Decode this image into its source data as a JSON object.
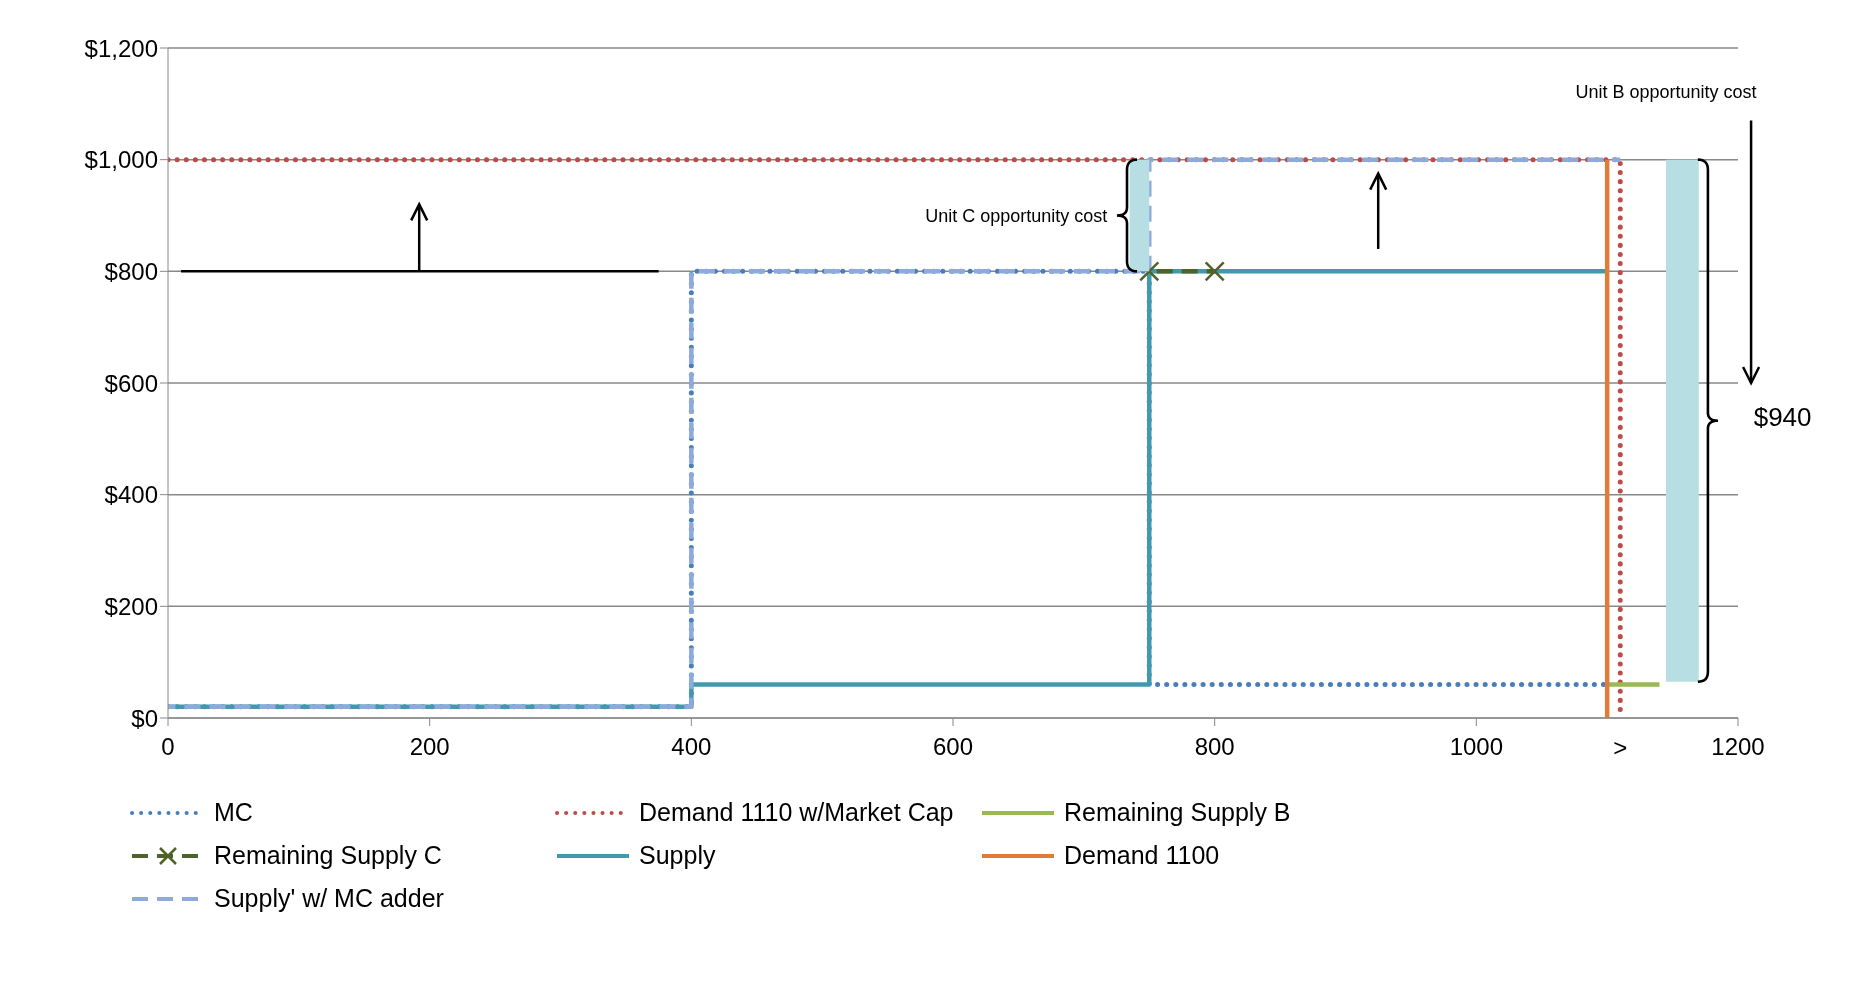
{
  "chart_data": {
    "type": "line",
    "xlim": [
      0,
      1200
    ],
    "ylim": [
      0,
      1200
    ],
    "xticks": [
      0,
      200,
      400,
      600,
      800,
      1000,
      1200
    ],
    "yticks": [
      {
        "value": 0,
        "label": "$0"
      },
      {
        "value": 200,
        "label": "$200"
      },
      {
        "value": 400,
        "label": "$400"
      },
      {
        "value": 600,
        "label": "$600"
      },
      {
        "value": 800,
        "label": "$800"
      },
      {
        "value": 1000,
        "label": "$1,000"
      },
      {
        "value": 1200,
        "label": "$1,200"
      }
    ],
    "grid": "y",
    "legend": "bottom",
    "marker": "none",
    "annotations": [
      "Unit C opportunity cost",
      "Unit B opportunity cost",
      "$940",
      ">"
    ],
    "series": [
      {
        "name": "MC",
        "color": "#4a7ebb",
        "line_style": "dotted",
        "x": [
          0,
          400,
          400,
          750,
          750,
          1100
        ],
        "values": [
          20,
          20,
          800,
          800,
          60,
          60
        ]
      },
      {
        "name": "Demand 1110 w/Market Cap",
        "color": "#be4b48",
        "line_style": "dotted",
        "x": [
          0,
          1110,
          1110
        ],
        "values": [
          1000,
          1000,
          0
        ]
      },
      {
        "name": "Remaining Supply B",
        "color": "#98b954",
        "line_style": "solid",
        "x": [
          1100,
          1140
        ],
        "values": [
          60,
          60
        ]
      },
      {
        "name": "Remaining Supply C",
        "color": "#4f6228",
        "line_style": "dashed",
        "marker": "cross",
        "x": [
          750,
          800
        ],
        "values": [
          800,
          800
        ]
      },
      {
        "name": "Supply",
        "color": "#4198af",
        "line_style": "solid",
        "x": [
          0,
          400,
          400,
          750,
          750,
          1100
        ],
        "values": [
          20,
          20,
          60,
          60,
          800,
          800
        ]
      },
      {
        "name": "Demand 1100",
        "color": "#e07b39",
        "line_style": "solid",
        "x": [
          1100,
          1100
        ],
        "values": [
          0,
          1000
        ]
      },
      {
        "name": "Supply' w/ MC adder",
        "color": "#8eaadb",
        "line_style": "dashed",
        "x": [
          0,
          400,
          400,
          750,
          750,
          1110
        ],
        "values": [
          20,
          20,
          800,
          800,
          1000,
          1000
        ]
      }
    ]
  }
}
